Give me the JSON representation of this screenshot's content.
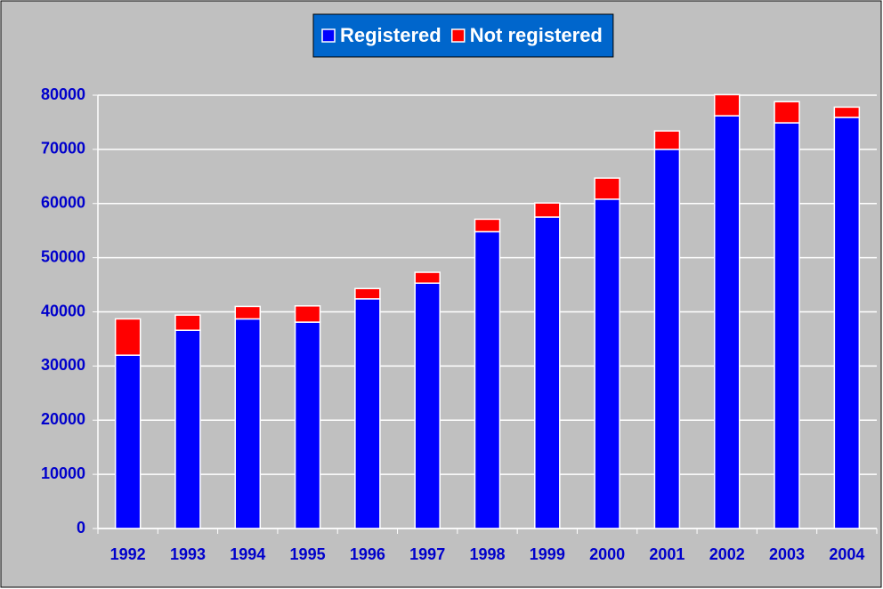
{
  "chart_data": {
    "type": "stacked-bar",
    "categories": [
      "1992",
      "1993",
      "1994",
      "1995",
      "1996",
      "1997",
      "1998",
      "1999",
      "2000",
      "2001",
      "2002",
      "2003",
      "2004"
    ],
    "series": [
      {
        "name": "Registered",
        "color": "#0000ff",
        "values": [
          32000,
          36600,
          38700,
          38100,
          42400,
          45300,
          54800,
          57500,
          60800,
          70000,
          76200,
          74900,
          75900
        ]
      },
      {
        "name": "Not registered",
        "color": "#ff0000",
        "values": [
          6700,
          2800,
          2300,
          3000,
          1900,
          2000,
          2300,
          2600,
          3900,
          3400,
          3900,
          3900,
          1900
        ]
      }
    ],
    "ylim": [
      0,
      80000
    ],
    "yticks": [
      0,
      10000,
      20000,
      30000,
      40000,
      50000,
      60000,
      70000,
      80000
    ],
    "grid": true,
    "legend": "top"
  }
}
